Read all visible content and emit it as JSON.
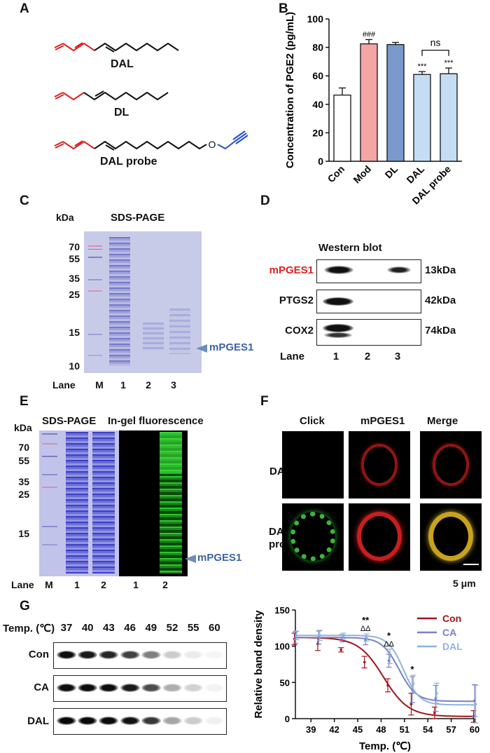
{
  "panel_labels": {
    "A": "A",
    "B": "B",
    "C": "C",
    "D": "D",
    "E": "E",
    "F": "F",
    "G": "G"
  },
  "panel_a": {
    "compounds": [
      "DAL",
      "DL",
      "DAL probe"
    ],
    "oxygen_atom": "O"
  },
  "chart_data": [
    {
      "type": "bar",
      "panel": "B",
      "title": "",
      "xlabel": "",
      "ylabel": "Concentration of PGE2 (pg/mL)",
      "categories": [
        "Con",
        "Mod",
        "DL",
        "DAL",
        "DAL probe"
      ],
      "values": [
        46.5,
        82.5,
        82.0,
        61.0,
        61.5
      ],
      "errors": [
        5.0,
        3.0,
        1.5,
        2.0,
        4.0
      ],
      "colors": [
        "#ffffff",
        "#f4a5a5",
        "#7a9acb",
        "#c5dcf5",
        "#c5dcf5"
      ],
      "annotations": [
        "",
        "###",
        "",
        "***",
        "***"
      ],
      "bracket_label": "ns",
      "ylim": [
        0,
        100
      ],
      "yticks": [
        "0",
        "20",
        "40",
        "60",
        "80",
        "100"
      ]
    },
    {
      "type": "line",
      "panel": "G",
      "title": "",
      "xlabel": "Temp. (℃)",
      "ylabel": "Relative band density",
      "xlim": [
        37,
        60
      ],
      "ylim": [
        0,
        150
      ],
      "xticks": [
        "39",
        "42",
        "45",
        "48",
        "51",
        "54",
        "57",
        "60"
      ],
      "yticks": [
        "0",
        "50",
        "100",
        "150"
      ],
      "x": [
        37,
        40,
        43,
        46,
        49,
        52,
        55,
        60
      ],
      "series": [
        {
          "name": "Con",
          "color": "#a0151b",
          "values": [
            110,
            103,
            95,
            78,
            46,
            20,
            8,
            3
          ],
          "errors": [
            8,
            9,
            3,
            8,
            9,
            15,
            8,
            8
          ],
          "fit": {
            "bottom": 3,
            "top": 112,
            "mid": 48.3,
            "slope": 1.6
          }
        },
        {
          "name": "CA",
          "color": "#7b7fc4",
          "values": [
            112,
            112,
            111,
            108,
            80,
            40,
            28,
            25
          ],
          "errors": [
            8,
            9,
            5,
            6,
            9,
            18,
            18,
            22
          ],
          "fit": {
            "bottom": 24,
            "top": 112,
            "mid": 50.3,
            "slope": 1.1
          }
        },
        {
          "name": "DAL",
          "color": "#8fb3dd",
          "values": [
            115,
            115,
            114,
            112,
            86,
            48,
            35,
            20
          ],
          "errors": [
            6,
            7,
            4,
            5,
            10,
            12,
            14,
            26
          ],
          "fit": {
            "bottom": 19,
            "top": 115,
            "mid": 50.9,
            "slope": 1.0
          }
        }
      ],
      "annotations": [
        {
          "x": 46,
          "top": "**",
          "bottom": "ΔΔ"
        },
        {
          "x": 49,
          "top": "*",
          "bottom": "ΔΔ"
        },
        {
          "x": 52,
          "top": "*",
          "bottom": ""
        }
      ]
    }
  ],
  "panel_c": {
    "unit": "kDa",
    "title": "SDS-PAGE",
    "markers": [
      "70",
      "55",
      "35",
      "25",
      "15",
      "10"
    ],
    "lane_header": "Lane",
    "lanes": [
      "M",
      "1",
      "2",
      "3"
    ],
    "arrow_label": "mPGES1"
  },
  "panel_d": {
    "title": "Western blot",
    "rows": [
      {
        "name": "mPGES1",
        "mw": "13kDa",
        "color": "#e02020"
      },
      {
        "name": "PTGS2",
        "mw": "42kDa",
        "color": "#111111"
      },
      {
        "name": "COX2",
        "mw": "74kDa",
        "color": "#111111"
      }
    ],
    "lane_header": "Lane",
    "lanes": [
      "1",
      "2",
      "3"
    ]
  },
  "panel_e": {
    "unit": "kDa",
    "title_left": "SDS-PAGE",
    "title_right": "In-gel fluorescence",
    "markers": [
      "70",
      "55",
      "35",
      "25",
      "15"
    ],
    "lane_header": "Lane",
    "lanes_left": [
      "M",
      "1",
      "2"
    ],
    "lanes_right": [
      "1",
      "2"
    ],
    "arrow_label": "mPGES1"
  },
  "panel_f": {
    "columns": [
      "Click",
      "mPGES1",
      "Merge"
    ],
    "rows": [
      "DAL",
      "DAL probe"
    ],
    "scale_bar": "5 μm"
  },
  "panel_g_blot": {
    "temp_header": "Temp. (℃)",
    "temps": [
      "37",
      "40",
      "43",
      "46",
      "49",
      "52",
      "55",
      "60"
    ],
    "rows": [
      "Con",
      "CA",
      "DAL"
    ]
  }
}
